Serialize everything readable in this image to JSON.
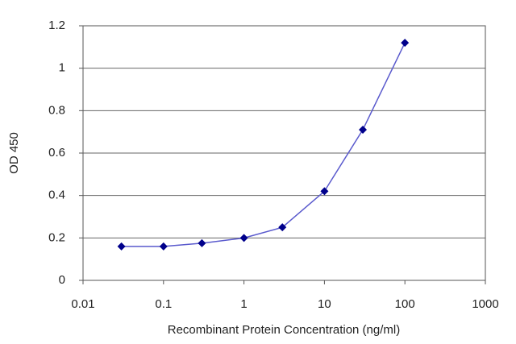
{
  "chart_data": {
    "type": "line",
    "x_label": "Recombinant Protein Concentration (ng/ml)",
    "y_label": "OD 450",
    "x": [
      0.03,
      0.1,
      0.3,
      1,
      3,
      10,
      30,
      100
    ],
    "series": [
      {
        "color": "#00008b",
        "values": [
          0.16,
          0.16,
          0.175,
          0.2,
          0.25,
          0.42,
          0.71,
          1.12
        ]
      }
    ],
    "xlim": [
      0.01,
      1000
    ],
    "xticks": [
      0.01,
      0.1,
      1,
      10,
      100,
      1000
    ],
    "x_log": true,
    "ylim": [
      0,
      1.2
    ],
    "yticks": [
      0,
      0.2,
      0.4,
      0.6,
      0.8,
      1,
      1.2
    ],
    "grid": true
  }
}
